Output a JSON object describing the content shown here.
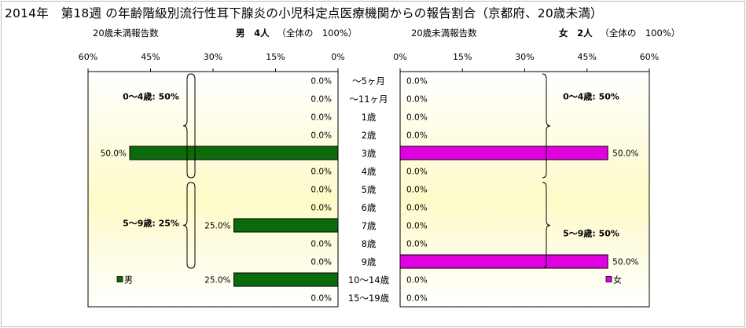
{
  "title": "2014年　第18週 の年齢階級別流行性耳下腺炎の小児科定点医療機関からの報告割合（京都府、20歳未満）",
  "male_header": {
    "report_label": "20歳未満報告数",
    "sex": "男",
    "count": "4人",
    "note": "（全体の　100%）"
  },
  "female_header": {
    "report_label": "20歳未満報告数",
    "sex": "女",
    "count": "2人",
    "note": "（全体の　100%）"
  },
  "colors": {
    "male": "#0b6b0b",
    "female": "#e000e0",
    "plot_bg_top": "#ffffff",
    "plot_bg_mid": "#fefbc8"
  },
  "chart_data": [
    {
      "type": "bar",
      "orientation": "horizontal",
      "direction": "right-to-left",
      "series": [
        {
          "name": "男",
          "values": [
            0,
            0,
            0,
            0,
            50,
            0,
            0,
            0,
            25,
            0,
            0,
            25,
            0
          ]
        }
      ],
      "categories": [
        "～5ヶ月",
        "～11ヶ月",
        "1歳",
        "2歳",
        "3歳",
        "4歳",
        "5歳",
        "6歳",
        "7歳",
        "8歳",
        "9歳",
        "10～14歳",
        "15～19歳"
      ],
      "data_labels": [
        "0.0%",
        "0.0%",
        "0.0%",
        "0.0%",
        "50.0%",
        "0.0%",
        "0.0%",
        "0.0%",
        "25.0%",
        "0.0%",
        "0.0%",
        "25.0%",
        "0.0%"
      ],
      "xlim": [
        0,
        60
      ],
      "ticks": [
        "60%",
        "45%",
        "30%",
        "15%",
        "0%"
      ],
      "groups": [
        {
          "label": "0～4歳: 50%",
          "from": "～5ヶ月",
          "to": "4歳"
        },
        {
          "label": "5～9歳: 25%",
          "from": "5歳",
          "to": "9歳"
        }
      ],
      "legend": "bottom-left"
    },
    {
      "type": "bar",
      "orientation": "horizontal",
      "direction": "left-to-right",
      "series": [
        {
          "name": "女",
          "values": [
            0,
            0,
            0,
            0,
            50,
            0,
            0,
            0,
            0,
            0,
            50,
            0,
            0
          ]
        }
      ],
      "categories": [
        "～5ヶ月",
        "～11ヶ月",
        "1歳",
        "2歳",
        "3歳",
        "4歳",
        "5歳",
        "6歳",
        "7歳",
        "8歳",
        "9歳",
        "10～14歳",
        "15～19歳"
      ],
      "data_labels": [
        "0.0%",
        "0.0%",
        "0.0%",
        "0.0%",
        "50.0%",
        "0.0%",
        "0.0%",
        "0.0%",
        "0.0%",
        "0.0%",
        "50.0%",
        "0.0%",
        "0.0%"
      ],
      "xlim": [
        0,
        60
      ],
      "ticks": [
        "0%",
        "15%",
        "30%",
        "45%",
        "60%"
      ],
      "groups": [
        {
          "label": "0～4歳: 50%",
          "from": "～5ヶ月",
          "to": "4歳"
        },
        {
          "label": "5～9歳: 50%",
          "from": "5歳",
          "to": "9歳"
        }
      ],
      "legend": "bottom-right"
    }
  ]
}
